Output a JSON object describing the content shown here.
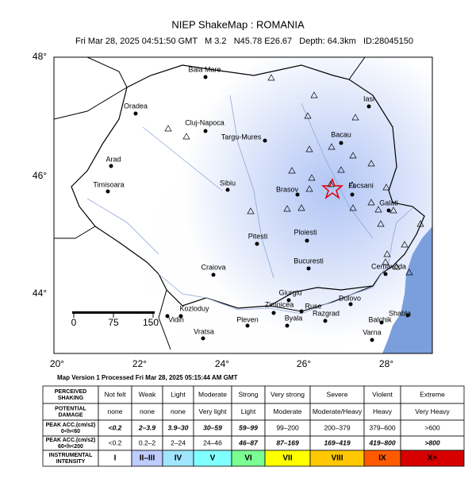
{
  "header": {
    "title": "NIEP ShakeMap : ROMANIA",
    "subtitle": "Fri Mar 28, 2025 04:51:50 GMT   M 3.2   N45.78 E26.67   Depth: 64.3km   ID:28045150"
  },
  "map": {
    "lat_labels": [
      "48°",
      "46°",
      "44°"
    ],
    "lon_labels": [
      "20°",
      "22°",
      "24°",
      "26°",
      "28°"
    ],
    "scale_labels": [
      "0",
      "75",
      "150"
    ],
    "cities": [
      "Baia Mare",
      "Oradea",
      "Cluj-Napoca",
      "Targu-Mures",
      "Iasi",
      "Bacau",
      "Arad",
      "Timisoara",
      "Sibiu",
      "Brasov",
      "Focsani",
      "Galati",
      "Ploiesti",
      "Pitesti",
      "Bucuresti",
      "Craiova",
      "Cernavoda",
      "Giurgiu",
      "Zimnicea",
      "Ruse",
      "Dulovo",
      "Kozloduy",
      "Vidin",
      "Pleven",
      "Byala",
      "Razgrad",
      "Shabla",
      "Balchik",
      "Varna",
      "Vratsa"
    ]
  },
  "footer": {
    "version": "Map Version 1 Processed Fri Mar 28, 2025 05:15:44 AM GMT"
  },
  "table": {
    "rows": [
      {
        "header": [
          "PERCEIVED",
          "SHAKING"
        ],
        "cells": [
          "Not felt",
          "Weak",
          "Light",
          "Moderate",
          "Strong",
          "Very strong",
          "Severe",
          "Violent",
          "Extreme"
        ]
      },
      {
        "header": [
          "POTENTIAL",
          "DAMAGE"
        ],
        "cells": [
          "none",
          "none",
          "none",
          "Very light",
          "Light",
          "Moderate",
          "Moderate/Heavy",
          "Heavy",
          "Very Heavy"
        ]
      },
      {
        "header": [
          "PEAK ACC.(cm/s2)",
          "0<h<60"
        ],
        "cells": [
          "<0.2",
          "2–3.9",
          "3.9–30",
          "30–59",
          "59–99",
          "99–200",
          "200–379",
          "379–600",
          ">600"
        ]
      },
      {
        "header": [
          "PEAK ACC.(cm/s2)",
          "60<h<200"
        ],
        "cells": [
          "<0.2",
          "0.2–2",
          "2–24",
          "24–46",
          "46–87",
          "87–169",
          "169–419",
          "419–800",
          ">800"
        ]
      },
      {
        "header": [
          "INSTRUMENTAL",
          "INTENSITY"
        ],
        "cells": [
          "I",
          "II–III",
          "IV",
          "V",
          "VI",
          "VII",
          "VIII",
          "IX",
          "X+"
        ]
      }
    ]
  }
}
